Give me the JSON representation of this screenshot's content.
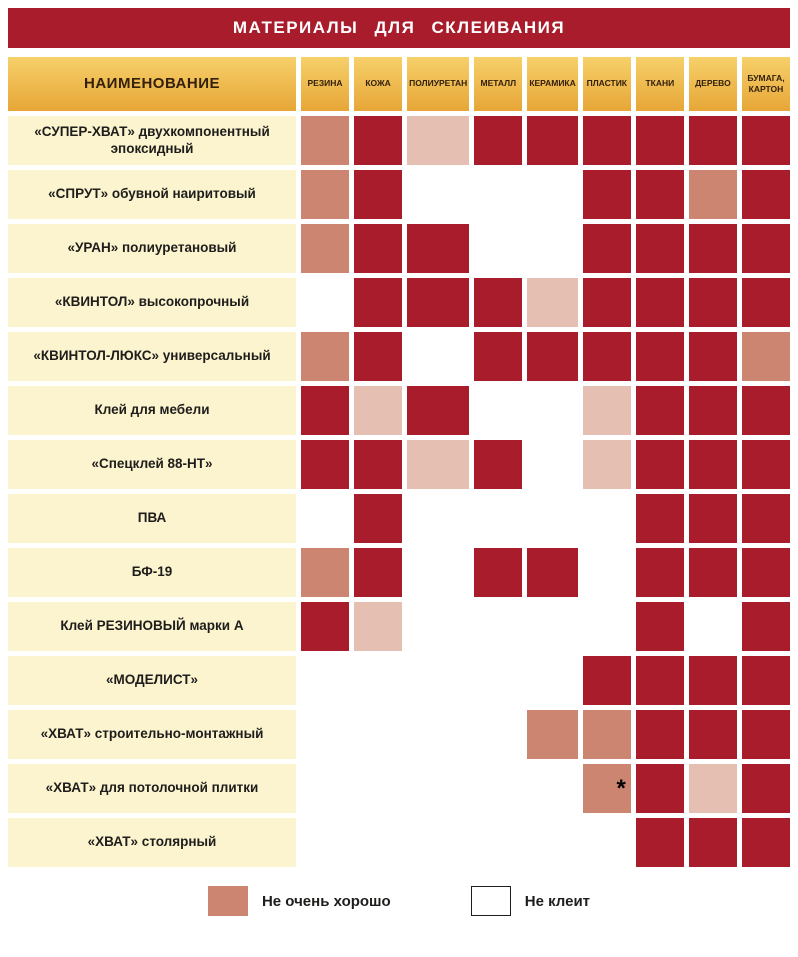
{
  "table": {
    "title": "МАТЕРИАЛЫ ДЛЯ СКЛЕИВАНИЯ",
    "name_header": "НАИМЕНОВАНИЕ"
  },
  "colors": {
    "good": "#a81c2c",
    "ok": "#cb8570",
    "ok_light": "#e5c0b2",
    "none": "#ffffff",
    "title_bg": "#a81c2c",
    "header_gold": "#eeb845",
    "row_label_bg": "#fcf3cf"
  },
  "chart_data": {
    "type": "heatmap",
    "title": "МАТЕРИАЛЫ ДЛЯ СКЛЕИВАНИЯ",
    "columns": [
      "РЕЗИНА",
      "КОЖА",
      "ПОЛИУРЕТАН",
      "МЕТАЛЛ",
      "КЕРАМИКА",
      "ПЛАСТИК",
      "ТКАНИ",
      "ДЕРЕВО",
      "БУМАГА, КАРТОН"
    ],
    "rows": [
      {
        "label": "«СУПЕР-ХВАТ» двухкомпонентный эпоксидный",
        "cells": [
          "ok",
          "good",
          "ok_light",
          "good",
          "good",
          "good",
          "good",
          "good",
          "good"
        ]
      },
      {
        "label": "«СПРУТ» обувной наиритовый",
        "cells": [
          "ok",
          "good",
          "none",
          "none",
          "none",
          "good",
          "good",
          "ok",
          "good"
        ]
      },
      {
        "label": "«УРАН» полиуретановый",
        "cells": [
          "ok",
          "good",
          "good",
          "none",
          "none",
          "good",
          "good",
          "good",
          "good"
        ]
      },
      {
        "label": "«КВИНТОЛ» высокопрочный",
        "cells": [
          "none",
          "good",
          "good",
          "good",
          "ok_light",
          "good",
          "good",
          "good",
          "good"
        ]
      },
      {
        "label": "«КВИНТОЛ-ЛЮКС» универсальный",
        "cells": [
          "ok",
          "good",
          "none",
          "good",
          "good",
          "good",
          "good",
          "good",
          "ok"
        ]
      },
      {
        "label": "Клей для мебели",
        "cells": [
          "good",
          "ok_light",
          "good",
          "none",
          "none",
          "ok_light",
          "good",
          "good",
          "good"
        ]
      },
      {
        "label": "«Спецклей 88-НТ»",
        "cells": [
          "good",
          "good",
          "ok_light",
          "good",
          "none",
          "ok_light",
          "good",
          "good",
          "good"
        ]
      },
      {
        "label": "ПВА",
        "cells": [
          "none",
          "good",
          "none",
          "none",
          "none",
          "none",
          "good",
          "good",
          "good"
        ]
      },
      {
        "label": "БФ-19",
        "cells": [
          "ok",
          "good",
          "none",
          "good",
          "good",
          "none",
          "good",
          "good",
          "good"
        ]
      },
      {
        "label": "Клей РЕЗИНОВЫЙ марки А",
        "cells": [
          "good",
          "ok_light",
          "none",
          "none",
          "none",
          "none",
          "good",
          "none",
          "good"
        ]
      },
      {
        "label": "«МОДЕЛИСТ»",
        "cells": [
          "none",
          "none",
          "none",
          "none",
          "none",
          "good",
          "good",
          "good",
          "good"
        ]
      },
      {
        "label": "«ХВАТ» строительно-монтажный",
        "cells": [
          "none",
          "none",
          "none",
          "none",
          "ok",
          "ok",
          "good",
          "good",
          "good"
        ]
      },
      {
        "label": "«ХВАТ» для потолочной плитки",
        "cells": [
          "none",
          "none",
          "none",
          "none",
          "none",
          "ok",
          "good",
          "ok_light",
          "good"
        ],
        "marker": "*",
        "marker_col": 5
      },
      {
        "label": "«ХВАТ» столярный",
        "cells": [
          "none",
          "none",
          "none",
          "none",
          "none",
          "none",
          "good",
          "good",
          "good"
        ]
      }
    ],
    "legend": [
      {
        "label": "Не очень хорошо",
        "value": "ok"
      },
      {
        "label": "Не клеит",
        "value": "none"
      }
    ]
  }
}
